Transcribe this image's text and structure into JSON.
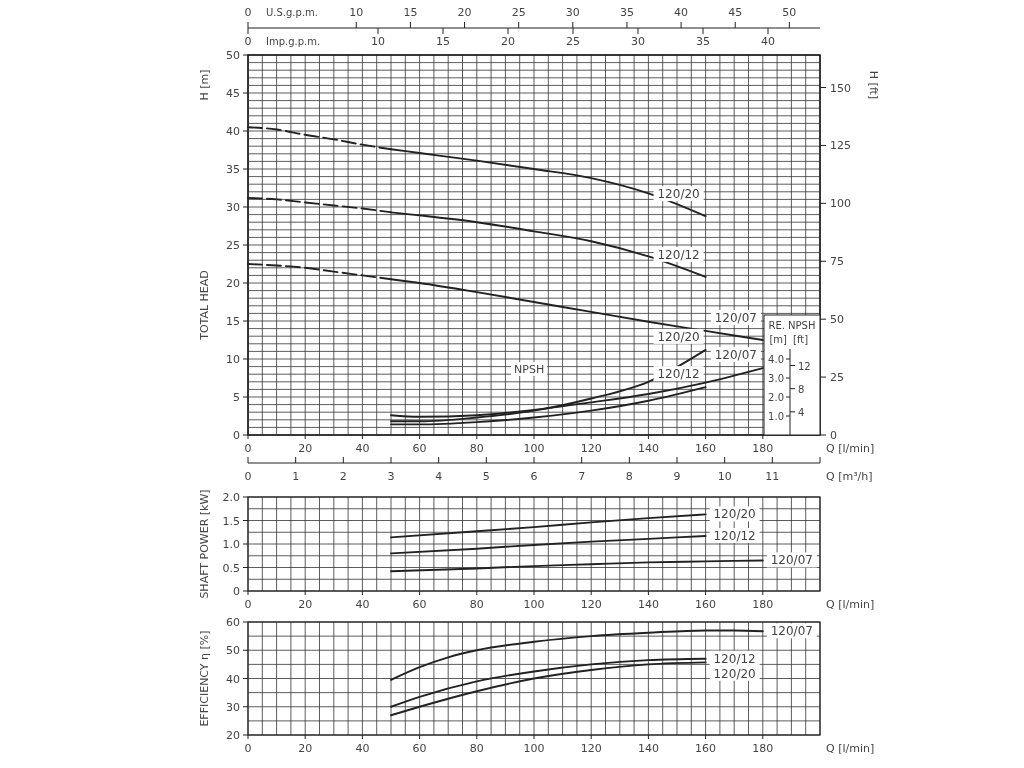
{
  "chart_data": [
    {
      "type": "line",
      "ylabel": "H [m]",
      "y2label": "H [ft]",
      "xlabel": "Q [l/min]",
      "x2label": "U.S.g.p.m.",
      "annotations": [
        "TOTAL HEAD"
      ],
      "grid": true,
      "x2lim": [
        0,
        52.83
      ],
      "x2ticks": [
        0,
        10,
        15,
        20,
        25,
        30,
        35,
        40,
        45,
        50
      ],
      "xlim": [
        0,
        200
      ],
      "xticks": [
        0,
        {
          "value": 5,
          "label": null
        },
        {
          "value": 10,
          "label": null
        },
        {
          "value": 15,
          "label": null
        },
        20,
        {
          "value": 25,
          "label": null
        },
        {
          "value": 30,
          "label": null
        },
        {
          "value": 35,
          "label": null
        },
        40,
        {
          "value": 45,
          "label": null
        },
        {
          "value": 50,
          "label": null
        },
        {
          "value": 55,
          "label": null
        },
        60,
        {
          "value": 65,
          "label": null
        },
        {
          "value": 70,
          "label": null
        },
        {
          "value": 75,
          "label": null
        },
        80,
        {
          "value": 85,
          "label": null
        },
        {
          "value": 90,
          "label": null
        },
        {
          "value": 95,
          "label": null
        },
        100,
        {
          "value": 105,
          "label": null
        },
        {
          "value": 110,
          "label": null
        },
        {
          "value": 115,
          "label": null
        },
        120,
        {
          "value": 125,
          "label": null
        },
        {
          "value": 130,
          "label": null
        },
        {
          "value": 135,
          "label": null
        },
        140,
        {
          "value": 145,
          "label": null
        },
        {
          "value": 150,
          "label": null
        },
        {
          "value": 155,
          "label": null
        },
        160,
        {
          "value": 165,
          "label": null
        },
        {
          "value": 170,
          "label": null
        },
        {
          "value": 175,
          "label": null
        },
        180,
        {
          "value": 185,
          "label": null
        },
        {
          "value": 190,
          "label": null
        },
        {
          "value": 195,
          "label": null
        },
        {
          "value": 200,
          "label": null
        }
      ],
      "ylim": [
        0,
        50
      ],
      "yticks": [
        0,
        {
          "value": 1,
          "label": null
        },
        {
          "value": 2,
          "label": null
        },
        {
          "value": 3,
          "label": null
        },
        {
          "value": 4,
          "label": null
        },
        5,
        {
          "value": 6,
          "label": null
        },
        {
          "value": 7,
          "label": null
        },
        {
          "value": 8,
          "label": null
        },
        {
          "value": 9,
          "label": null
        },
        10,
        {
          "value": 11,
          "label": null
        },
        {
          "value": 12,
          "label": null
        },
        {
          "value": 13,
          "label": null
        },
        {
          "value": 14,
          "label": null
        },
        15,
        {
          "value": 16,
          "label": null
        },
        {
          "value": 17,
          "label": null
        },
        {
          "value": 18,
          "label": null
        },
        {
          "value": 19,
          "label": null
        },
        20,
        {
          "value": 21,
          "label": null
        },
        {
          "value": 22,
          "label": null
        },
        {
          "value": 23,
          "label": null
        },
        {
          "value": 24,
          "label": null
        },
        25,
        {
          "value": 26,
          "label": null
        },
        {
          "value": 27,
          "label": null
        },
        {
          "value": 28,
          "label": null
        },
        {
          "value": 29,
          "label": null
        },
        30,
        {
          "value": 31,
          "label": null
        },
        {
          "value": 32,
          "label": null
        },
        {
          "value": 33,
          "label": null
        },
        {
          "value": 34,
          "label": null
        },
        35,
        {
          "value": 36,
          "label": null
        },
        {
          "value": 37,
          "label": null
        },
        {
          "value": 38,
          "label": null
        },
        {
          "value": 39,
          "label": null
        },
        40,
        {
          "value": 41,
          "label": null
        },
        {
          "value": 42,
          "label": null
        },
        {
          "value": 43,
          "label": null
        },
        {
          "value": 44,
          "label": null
        },
        45,
        {
          "value": 46,
          "label": null
        },
        {
          "value": 47,
          "label": null
        },
        {
          "value": 48,
          "label": null
        },
        {
          "value": 49,
          "label": null
        },
        50
      ],
      "y2lim": [
        0,
        164.04
      ],
      "y2ticks": [
        0,
        25,
        50,
        75,
        100,
        125,
        150
      ],
      "series": [
        {
          "color": "#222222",
          "line_style": "dashed",
          "x": [
            0,
            10,
            20,
            30,
            40,
            50
          ],
          "values": [
            40.5,
            40.2,
            39.5,
            38.9,
            38.2,
            37.6
          ]
        },
        {
          "name": "120/20",
          "color": "#222222",
          "line_style": "solid",
          "x": [
            50,
            60,
            80,
            100,
            120,
            140,
            160
          ],
          "values": [
            37.6,
            37.1,
            36.1,
            35.0,
            33.8,
            31.8,
            28.8
          ]
        },
        {
          "color": "#222222",
          "line_style": "dashed",
          "x": [
            0,
            10,
            20,
            30,
            40,
            50
          ],
          "values": [
            31.2,
            31.0,
            30.6,
            30.2,
            29.8,
            29.3
          ]
        },
        {
          "name": "120/12",
          "color": "#222222",
          "line_style": "solid",
          "x": [
            50,
            60,
            80,
            100,
            120,
            140,
            160
          ],
          "values": [
            29.3,
            28.9,
            28.0,
            26.8,
            25.5,
            23.5,
            20.8
          ]
        },
        {
          "color": "#222222",
          "line_style": "dashed",
          "x": [
            0,
            10,
            20,
            30,
            40,
            50
          ],
          "values": [
            22.5,
            22.3,
            22.0,
            21.5,
            21.0,
            20.5
          ]
        },
        {
          "name": "120/07",
          "color": "#222222",
          "line_style": "solid",
          "x": [
            50,
            60,
            80,
            100,
            120,
            140,
            160,
            180
          ],
          "values": [
            20.5,
            20.0,
            18.8,
            17.5,
            16.2,
            14.9,
            13.7,
            12.5
          ]
        }
      ]
    },
    {
      "type": "line",
      "title": "RE. NPSH",
      "ylabel": "[m]",
      "y2label": "[ft]",
      "x2label": "Imp.g.p.m.",
      "annotations": [
        "NPSH"
      ],
      "x2lim": [
        0,
        44.0
      ],
      "x2ticks": [
        0,
        10,
        15,
        20,
        25,
        30,
        35,
        40
      ],
      "xlim": [
        0,
        200
      ],
      "ylim": [
        0,
        20
      ],
      "yticks": [
        {
          "value": 1,
          "label": "1.0"
        },
        {
          "value": 2,
          "label": "2.0"
        },
        {
          "value": 3,
          "label": "3.0"
        },
        {
          "value": 4,
          "label": "4.0"
        }
      ],
      "y2lim": [
        0,
        65.62
      ],
      "y2ticks": [
        4,
        8,
        12
      ],
      "series": [
        {
          "name": "120/20",
          "color": "#222222",
          "line_style": "solid",
          "x": [
            50,
            60,
            80,
            100,
            120,
            140,
            160
          ],
          "values": [
            0.72,
            0.72,
            0.92,
            1.28,
            1.92,
            2.8,
            4.48
          ]
        },
        {
          "name": "120/07",
          "color": "#222222",
          "line_style": "solid",
          "x": [
            50,
            60,
            80,
            100,
            120,
            140,
            160,
            180
          ],
          "values": [
            1.04,
            0.96,
            1.04,
            1.32,
            1.72,
            2.16,
            2.76,
            3.52
          ]
        },
        {
          "name": "120/12",
          "color": "#222222",
          "line_style": "solid",
          "x": [
            50,
            60,
            80,
            100,
            120,
            140,
            160
          ],
          "values": [
            0.56,
            0.56,
            0.68,
            0.92,
            1.28,
            1.8,
            2.52
          ]
        }
      ]
    },
    {
      "type": "line",
      "ylabel": "SHAFT POWER  [kW]",
      "xlabel": "Q [l/min]",
      "x2label": "Q [m³/h]",
      "grid": true,
      "xlim": [
        0,
        200
      ],
      "xticks": [
        0,
        {
          "value": 5,
          "label": null
        },
        {
          "value": 10,
          "label": null
        },
        {
          "value": 15,
          "label": null
        },
        20,
        {
          "value": 25,
          "label": null
        },
        {
          "value": 30,
          "label": null
        },
        {
          "value": 35,
          "label": null
        },
        40,
        {
          "value": 45,
          "label": null
        },
        {
          "value": 50,
          "label": null
        },
        {
          "value": 55,
          "label": null
        },
        60,
        {
          "value": 65,
          "label": null
        },
        {
          "value": 70,
          "label": null
        },
        {
          "value": 75,
          "label": null
        },
        80,
        {
          "value": 85,
          "label": null
        },
        {
          "value": 90,
          "label": null
        },
        {
          "value": 95,
          "label": null
        },
        100,
        {
          "value": 105,
          "label": null
        },
        {
          "value": 110,
          "label": null
        },
        {
          "value": 115,
          "label": null
        },
        120,
        {
          "value": 125,
          "label": null
        },
        {
          "value": 130,
          "label": null
        },
        {
          "value": 135,
          "label": null
        },
        140,
        {
          "value": 145,
          "label": null
        },
        {
          "value": 150,
          "label": null
        },
        {
          "value": 155,
          "label": null
        },
        160,
        {
          "value": 165,
          "label": null
        },
        {
          "value": 170,
          "label": null
        },
        {
          "value": 175,
          "label": null
        },
        180,
        {
          "value": 185,
          "label": null
        },
        {
          "value": 190,
          "label": null
        },
        {
          "value": 195,
          "label": null
        },
        {
          "value": 200,
          "label": null
        }
      ],
      "ylim": [
        0,
        2
      ],
      "yticks": [
        0,
        {
          "value": 0.25,
          "label": null
        },
        {
          "value": 0.5,
          "label": "0.5"
        },
        {
          "value": 0.75,
          "label": null
        },
        {
          "value": 1,
          "label": "1.0"
        },
        {
          "value": 1.25,
          "label": null
        },
        {
          "value": 1.5,
          "label": "1.5"
        },
        {
          "value": 1.75,
          "label": null
        },
        {
          "value": 2,
          "label": "2.0"
        }
      ],
      "x2lim": [
        0,
        12
      ],
      "x2ticks": [
        0,
        1,
        2,
        3,
        4,
        5,
        6,
        7,
        8,
        9,
        10,
        11,
        {
          "value": 12,
          "label": null
        }
      ],
      "series": [
        {
          "name": "120/20",
          "color": "#222222",
          "line_style": "solid",
          "x": [
            50,
            80,
            100,
            120,
            140,
            160
          ],
          "values": [
            1.14,
            1.27,
            1.36,
            1.46,
            1.55,
            1.63
          ]
        },
        {
          "name": "120/12",
          "color": "#222222",
          "line_style": "solid",
          "x": [
            50,
            80,
            100,
            120,
            140,
            160
          ],
          "values": [
            0.8,
            0.9,
            0.98,
            1.05,
            1.11,
            1.17
          ]
        },
        {
          "name": "120/07",
          "color": "#222222",
          "line_style": "solid",
          "x": [
            50,
            80,
            100,
            120,
            140,
            160,
            180
          ],
          "values": [
            0.42,
            0.48,
            0.53,
            0.57,
            0.61,
            0.63,
            0.65
          ]
        }
      ]
    },
    {
      "type": "line",
      "ylabel": "EFFICIENCY  η [%]",
      "xlabel": "Q [l/min]",
      "grid": true,
      "xlim": [
        0,
        200
      ],
      "xticks": [
        0,
        {
          "value": 5,
          "label": null
        },
        {
          "value": 10,
          "label": null
        },
        {
          "value": 15,
          "label": null
        },
        20,
        {
          "value": 25,
          "label": null
        },
        {
          "value": 30,
          "label": null
        },
        {
          "value": 35,
          "label": null
        },
        40,
        {
          "value": 45,
          "label": null
        },
        {
          "value": 50,
          "label": null
        },
        {
          "value": 55,
          "label": null
        },
        60,
        {
          "value": 65,
          "label": null
        },
        {
          "value": 70,
          "label": null
        },
        {
          "value": 75,
          "label": null
        },
        80,
        {
          "value": 85,
          "label": null
        },
        {
          "value": 90,
          "label": null
        },
        {
          "value": 95,
          "label": null
        },
        100,
        {
          "value": 105,
          "label": null
        },
        {
          "value": 110,
          "label": null
        },
        {
          "value": 115,
          "label": null
        },
        120,
        {
          "value": 125,
          "label": null
        },
        {
          "value": 130,
          "label": null
        },
        {
          "value": 135,
          "label": null
        },
        140,
        {
          "value": 145,
          "label": null
        },
        {
          "value": 150,
          "label": null
        },
        {
          "value": 155,
          "label": null
        },
        160,
        {
          "value": 165,
          "label": null
        },
        {
          "value": 170,
          "label": null
        },
        {
          "value": 175,
          "label": null
        },
        180,
        {
          "value": 185,
          "label": null
        },
        {
          "value": 190,
          "label": null
        },
        {
          "value": 195,
          "label": null
        },
        {
          "value": 200,
          "label": null
        }
      ],
      "ylim": [
        20,
        60
      ],
      "yticks": [
        20,
        {
          "value": 25,
          "label": null
        },
        30,
        {
          "value": 35,
          "label": null
        },
        40,
        {
          "value": 45,
          "label": null
        },
        50,
        {
          "value": 55,
          "label": null
        },
        60
      ],
      "series": [
        {
          "name": "120/07",
          "color": "#222222",
          "line_style": "solid",
          "x": [
            50,
            60,
            70,
            80,
            100,
            120,
            140,
            160,
            170,
            180
          ],
          "values": [
            39.5,
            44,
            47.5,
            50,
            53,
            55,
            56.2,
            57,
            57,
            56.7
          ]
        },
        {
          "name": "120/12",
          "color": "#222222",
          "line_style": "solid",
          "x": [
            50,
            60,
            80,
            100,
            120,
            140,
            160
          ],
          "values": [
            30,
            33.5,
            39,
            42.5,
            45,
            46.5,
            47
          ]
        },
        {
          "name": "120/20",
          "color": "#222222",
          "line_style": "solid",
          "x": [
            50,
            60,
            80,
            100,
            120,
            140,
            160
          ],
          "values": [
            27,
            30,
            35.5,
            40,
            43,
            45,
            45.7
          ]
        }
      ]
    }
  ]
}
